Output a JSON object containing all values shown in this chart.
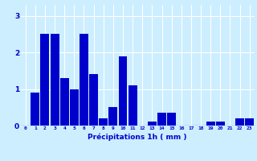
{
  "values": [
    0.0,
    0.9,
    2.5,
    2.5,
    1.3,
    1.0,
    2.5,
    1.4,
    0.2,
    0.5,
    1.9,
    1.1,
    0.0,
    0.1,
    0.35,
    0.35,
    0.0,
    0.0,
    0.0,
    0.1,
    0.1,
    0.0,
    0.2,
    0.2
  ],
  "bar_color": "#0000cc",
  "bar_edge_color": "#0000cc",
  "background_color": "#cceeff",
  "grid_color": "#ffffff",
  "xlabel": "Précipitations 1h ( mm )",
  "xlabel_color": "#0000cc",
  "tick_color": "#0000cc",
  "ylim": [
    0,
    3.3
  ],
  "yticks": [
    0,
    1,
    2,
    3
  ],
  "figsize": [
    3.2,
    2.0
  ],
  "dpi": 100
}
